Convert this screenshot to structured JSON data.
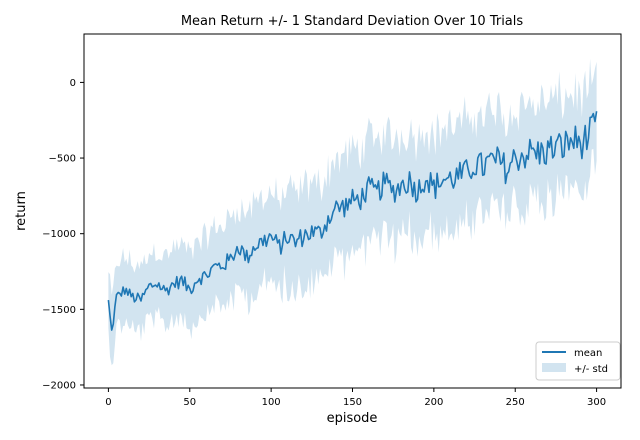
{
  "chart_data": {
    "type": "line",
    "title": "Mean Return +/- 1 Standard Deviation Over 10 Trials",
    "xlabel": "episode",
    "ylabel": "return",
    "xlim": [
      -15,
      315
    ],
    "ylim": [
      -2020,
      320
    ],
    "xticks": [
      0,
      50,
      100,
      150,
      200,
      250,
      300
    ],
    "yticks": [
      0,
      -500,
      -1000,
      -1500,
      -2000
    ],
    "xtick_labels": [
      "0",
      "50",
      "100",
      "150",
      "200",
      "250",
      "300"
    ],
    "ytick_labels": [
      "0",
      "−500",
      "−1000",
      "−1500",
      "−2000"
    ],
    "grid": false,
    "legend_position": "bottom-right",
    "legend": [
      "mean",
      "+/- std"
    ],
    "colors": {
      "line": "#1f77b4",
      "band": "#1f77b4",
      "band_opacity": 0.2
    },
    "mean_anchor_points": {
      "x": [
        0,
        2,
        5,
        10,
        15,
        20,
        25,
        30,
        35,
        40,
        45,
        50,
        55,
        60,
        65,
        70,
        75,
        80,
        85,
        90,
        95,
        100,
        105,
        110,
        115,
        120,
        125,
        130,
        135,
        140,
        145,
        150,
        155,
        160,
        165,
        170,
        175,
        180,
        185,
        190,
        195,
        200,
        205,
        210,
        215,
        220,
        225,
        230,
        235,
        240,
        245,
        250,
        255,
        260,
        265,
        270,
        275,
        280,
        285,
        290,
        295,
        300
      ],
      "y": [
        -1450,
        -1650,
        -1420,
        -1370,
        -1420,
        -1440,
        -1350,
        -1330,
        -1380,
        -1330,
        -1310,
        -1370,
        -1290,
        -1280,
        -1220,
        -1210,
        -1170,
        -1080,
        -1160,
        -1080,
        -1050,
        -1020,
        -1090,
        -1020,
        -1060,
        -1010,
        -990,
        -1000,
        -900,
        -830,
        -820,
        -780,
        -770,
        -700,
        -730,
        -660,
        -720,
        -680,
        -650,
        -720,
        -620,
        -700,
        -640,
        -640,
        -620,
        -600,
        -540,
        -560,
        -520,
        -520,
        -580,
        -500,
        -480,
        -460,
        -470,
        -450,
        -430,
        -420,
        -380,
        -400,
        -360,
        -280
      ]
    },
    "std_anchor_points": {
      "x": [
        0,
        25,
        50,
        75,
        100,
        125,
        150,
        175,
        200,
        225,
        250,
        275,
        300
      ],
      "y": [
        210,
        220,
        240,
        270,
        300,
        320,
        330,
        340,
        340,
        340,
        330,
        320,
        300
      ]
    }
  }
}
